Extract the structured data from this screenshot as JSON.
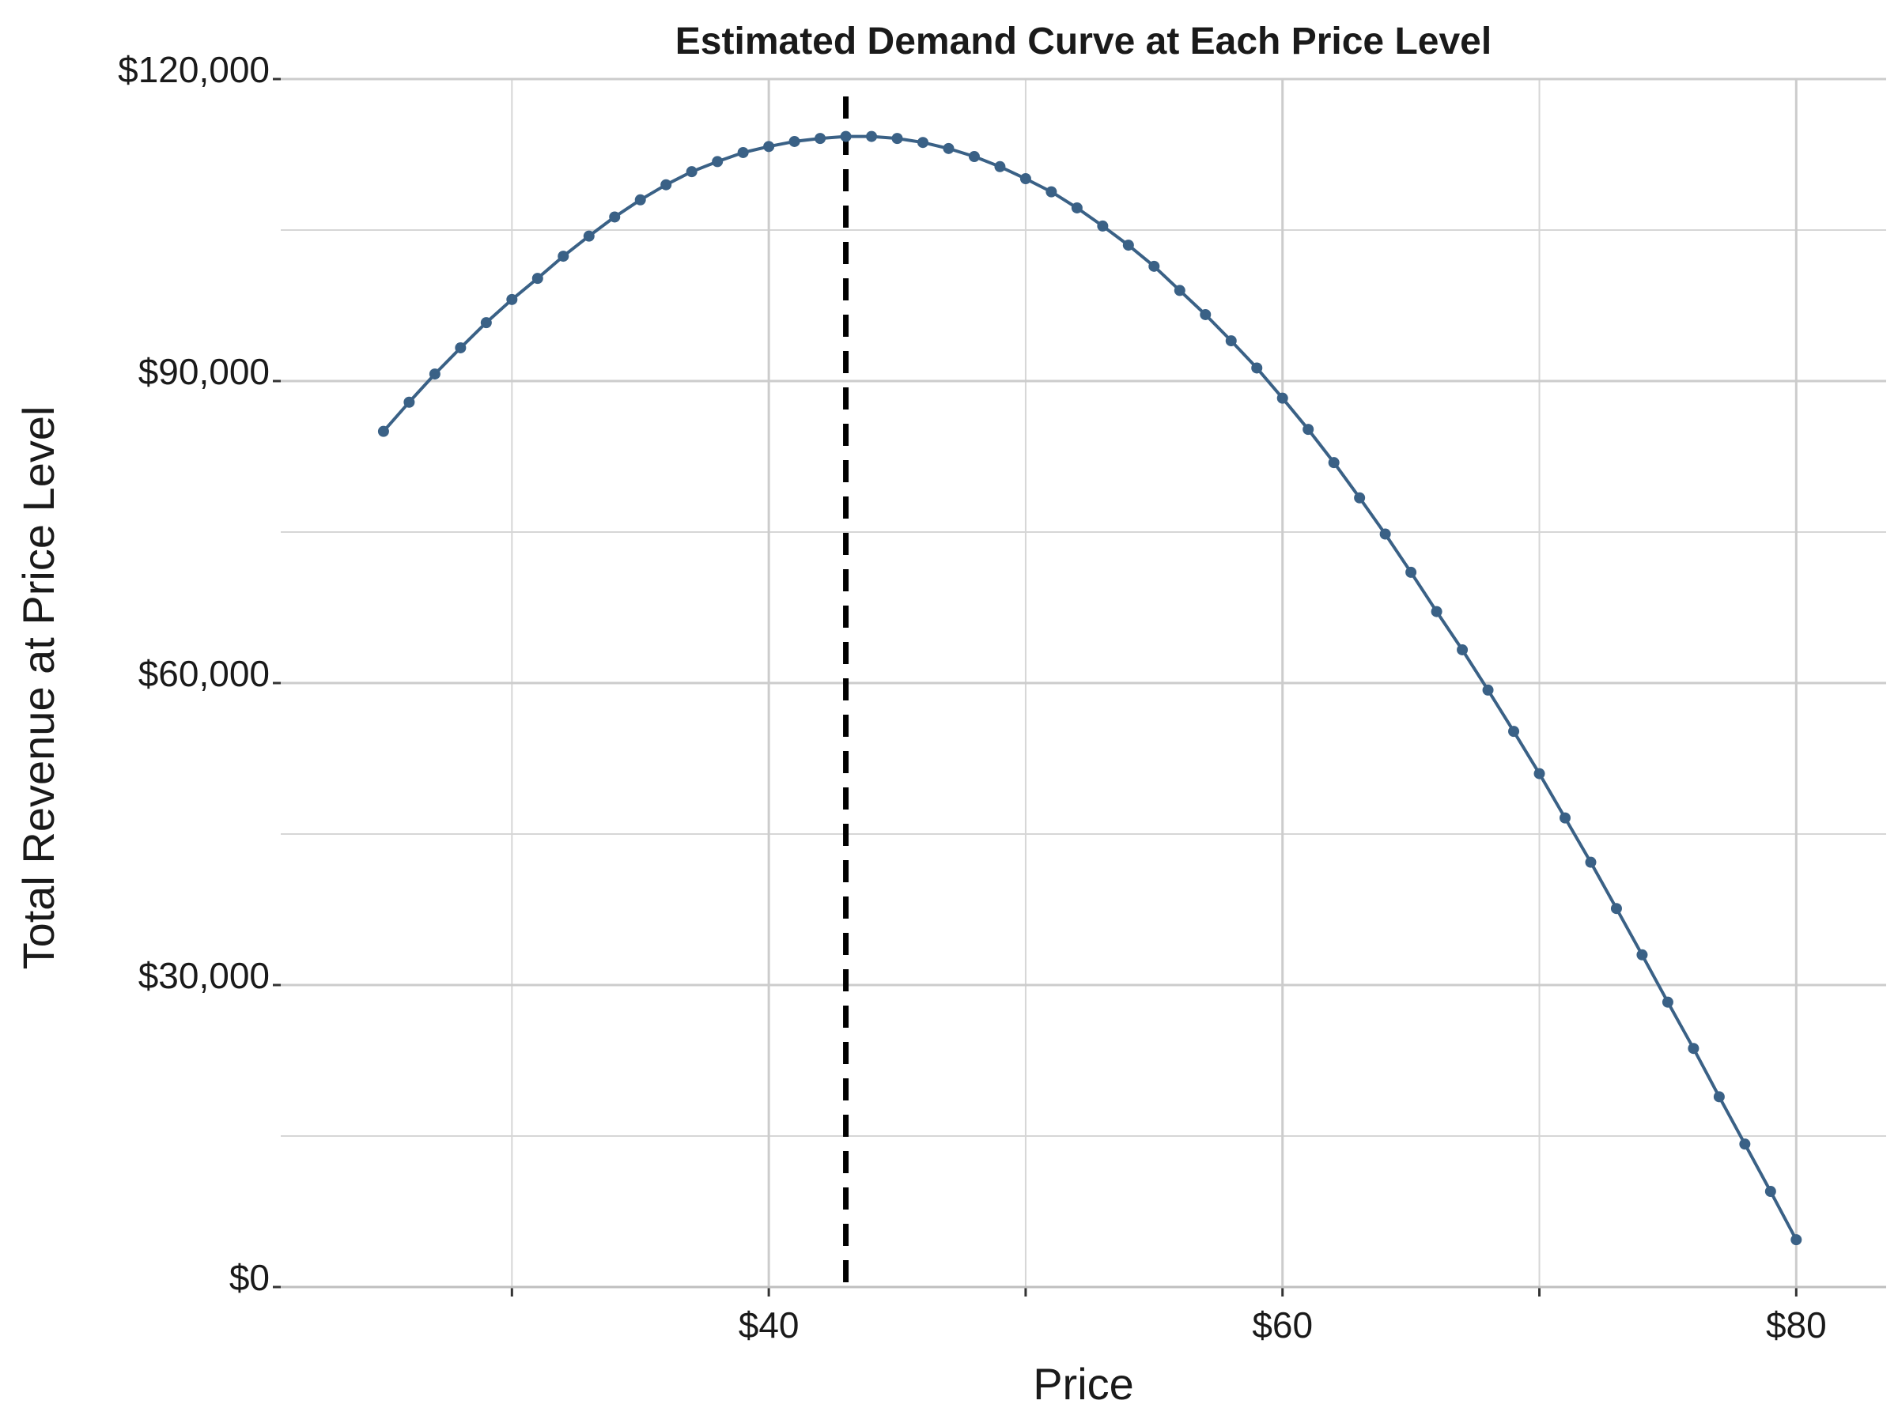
{
  "chart_data": {
    "type": "line",
    "title": "Estimated Demand Curve at Each Price Level",
    "xlabel": "Price",
    "ylabel": "Total Revenue at Price Level",
    "xlim": [
      21,
      83.5
    ],
    "ylim": [
      0,
      120000
    ],
    "x_major_ticks": [
      40,
      60,
      80
    ],
    "x_tick_labels": [
      "$40",
      "$60",
      "$80"
    ],
    "x_minor_ticks": [
      30,
      50,
      70
    ],
    "y_major_ticks": [
      0,
      30000,
      60000,
      90000,
      120000
    ],
    "y_tick_labels": [
      "$0",
      "$30,000",
      "$60,000",
      "$90,000",
      "$120,000"
    ],
    "y_minor_ticks": [
      15000,
      45000,
      75000,
      105000
    ],
    "grid": true,
    "line_color": "#3a6186",
    "reference_line": {
      "x": 43,
      "style": "dashed",
      "color": "#000000"
    },
    "series": [
      {
        "x": [
          25,
          26,
          27,
          28,
          29,
          30,
          31,
          32,
          33,
          34,
          35,
          36,
          37,
          38,
          39,
          40,
          41,
          42,
          43,
          44,
          45,
          46,
          47,
          48,
          49,
          50,
          51,
          52,
          53,
          54,
          55,
          56,
          57,
          58,
          59,
          60,
          61,
          62,
          63,
          64,
          65,
          66,
          67,
          68,
          69,
          70,
          71,
          72,
          73,
          74,
          75,
          76,
          77,
          78,
          79,
          80
        ],
        "y": [
          85000,
          87900,
          90700,
          93300,
          95800,
          98100,
          100200,
          102400,
          104400,
          106300,
          108000,
          109500,
          110800,
          111800,
          112700,
          113300,
          113800,
          114100,
          114300,
          114300,
          114100,
          113700,
          113100,
          112300,
          111300,
          110100,
          108800,
          107200,
          105400,
          103500,
          101400,
          99000,
          96600,
          94000,
          91300,
          88300,
          85200,
          81900,
          78400,
          74800,
          71000,
          67100,
          63300,
          59300,
          55200,
          51000,
          46600,
          42200,
          37600,
          33000,
          28300,
          23700,
          18900,
          14200,
          9500,
          4700
        ]
      }
    ]
  }
}
